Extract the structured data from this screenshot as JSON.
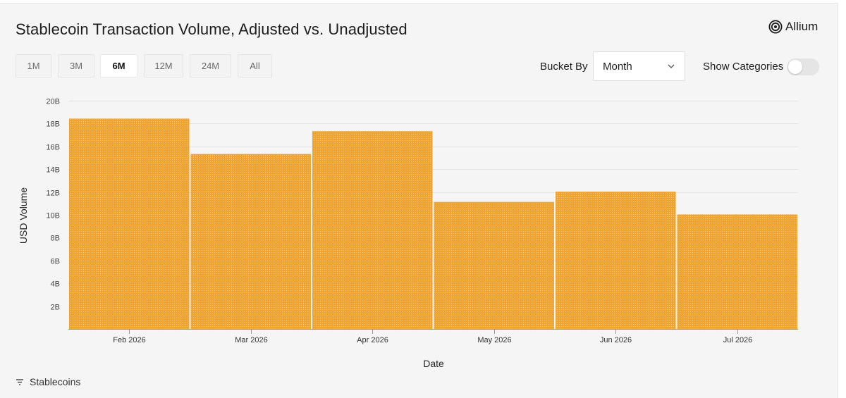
{
  "header": {
    "title": "Stablecoin Transaction Volume, Adjusted vs. Unadjusted",
    "brand": "Allium",
    "brand_icon": "allium-logo-icon"
  },
  "controls": {
    "ranges": [
      {
        "label": "1M",
        "active": false
      },
      {
        "label": "3M",
        "active": false
      },
      {
        "label": "6M",
        "active": true
      },
      {
        "label": "12M",
        "active": false
      },
      {
        "label": "24M",
        "active": false
      },
      {
        "label": "All",
        "active": false
      }
    ],
    "bucket_label": "Bucket By",
    "bucket_value": "Month",
    "show_categories_label": "Show Categories",
    "show_categories_on": false
  },
  "legend": {
    "label": "Stablecoins"
  },
  "chart_data": {
    "type": "bar",
    "categories": [
      "Feb 2026",
      "Mar 2026",
      "Apr 2026",
      "May 2026",
      "Jun 2026",
      "Jul 2026"
    ],
    "values": [
      18.4,
      15.3,
      17.3,
      11.1,
      12.0,
      10.0
    ],
    "unit": "B",
    "xlabel": "Date",
    "ylabel": "USD Volume",
    "ylim": [
      0,
      20
    ],
    "yticks": [
      2,
      4,
      6,
      8,
      10,
      12,
      14,
      16,
      18,
      20
    ],
    "ytick_labels": [
      "2B",
      "4B",
      "6B",
      "8B",
      "10B",
      "12B",
      "14B",
      "16B",
      "18B",
      "20B"
    ],
    "grid": true,
    "bar_color": "#efa330"
  }
}
